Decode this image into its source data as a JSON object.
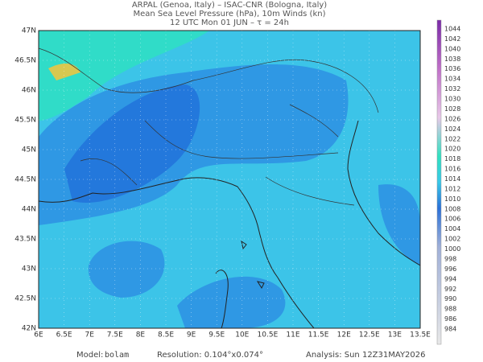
{
  "title": [
    "ARPAL (Genoa, Italy)  –  ISAC-CNR (Bologna, Italy)",
    "Mean Sea Level Pressure (hPa), 10m Winds (kn)",
    "12 UTC Mon 01 JUN  –  τ = 24h"
  ],
  "map": {
    "lon_labels": [
      "6E",
      "6.5E",
      "7E",
      "7.5E",
      "8E",
      "8.5E",
      "9E",
      "9.5E",
      "10E",
      "10.5E",
      "11E",
      "11.5E",
      "12E",
      "12.5E",
      "13E",
      "13.5E"
    ],
    "lat_labels": [
      "47N",
      "46.5N",
      "46N",
      "45.5N",
      "45N",
      "44.5N",
      "44N",
      "43.5N",
      "43N",
      "42.5N",
      "42N"
    ]
  },
  "colorbar": {
    "labels": [
      1044,
      1042,
      1040,
      1038,
      1036,
      1034,
      1032,
      1030,
      1028,
      1026,
      1024,
      1022,
      1020,
      1018,
      1016,
      1014,
      1012,
      1010,
      1008,
      1006,
      1004,
      1002,
      1000,
      998,
      996,
      994,
      992,
      990,
      988,
      986,
      984
    ]
  },
  "footer": {
    "model_label": "Model:",
    "model": "bolam",
    "resolution": "Resolution: 0.104°x0.074°",
    "analysis": "Analysis: Sun 12Z31MAY2026"
  }
}
